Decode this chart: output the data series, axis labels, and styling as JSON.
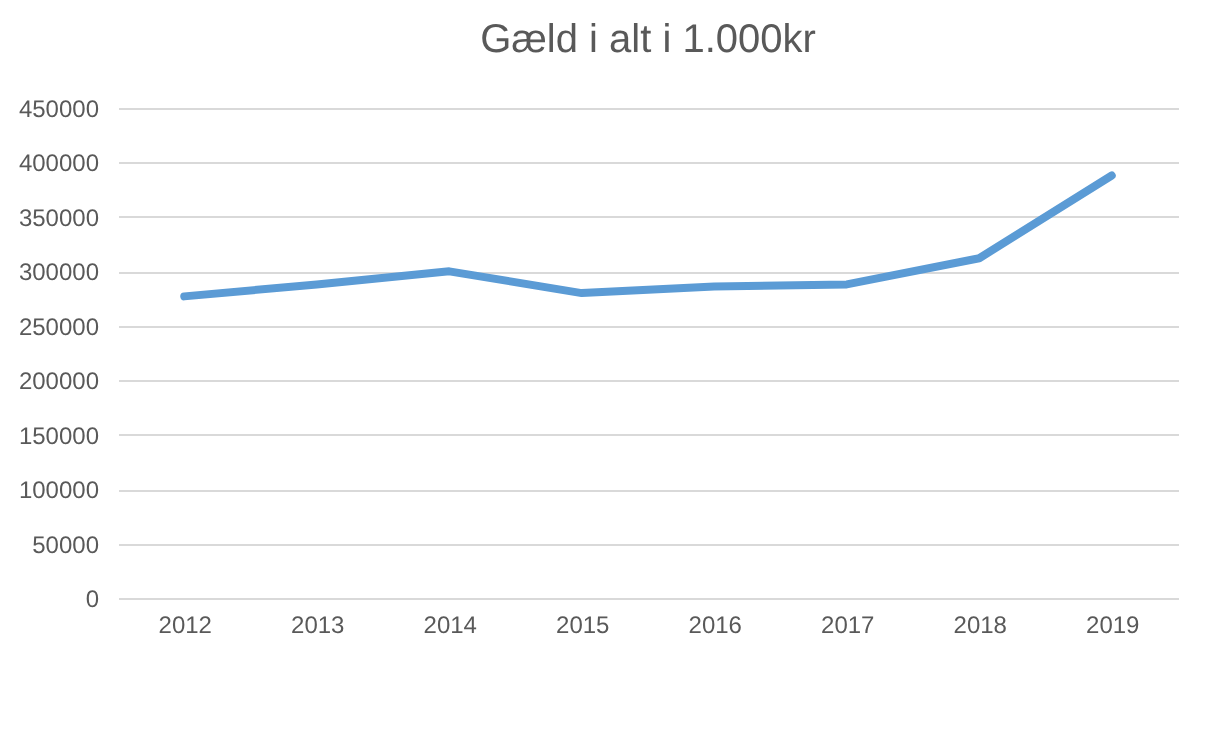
{
  "chart_data": {
    "type": "line",
    "title": "Gæld i alt i 1.000kr",
    "categories": [
      "2012",
      "2013",
      "2014",
      "2015",
      "2016",
      "2017",
      "2018",
      "2019"
    ],
    "series": [
      {
        "color": "#5b9bd5",
        "values": [
          277000,
          288000,
          300000,
          280000,
          286000,
          288000,
          312000,
          388000
        ]
      }
    ],
    "ylim": [
      0,
      450000
    ],
    "yticks": [
      0,
      50000,
      100000,
      150000,
      200000,
      250000,
      300000,
      350000,
      400000,
      450000
    ],
    "grid": "y",
    "legend": false
  }
}
